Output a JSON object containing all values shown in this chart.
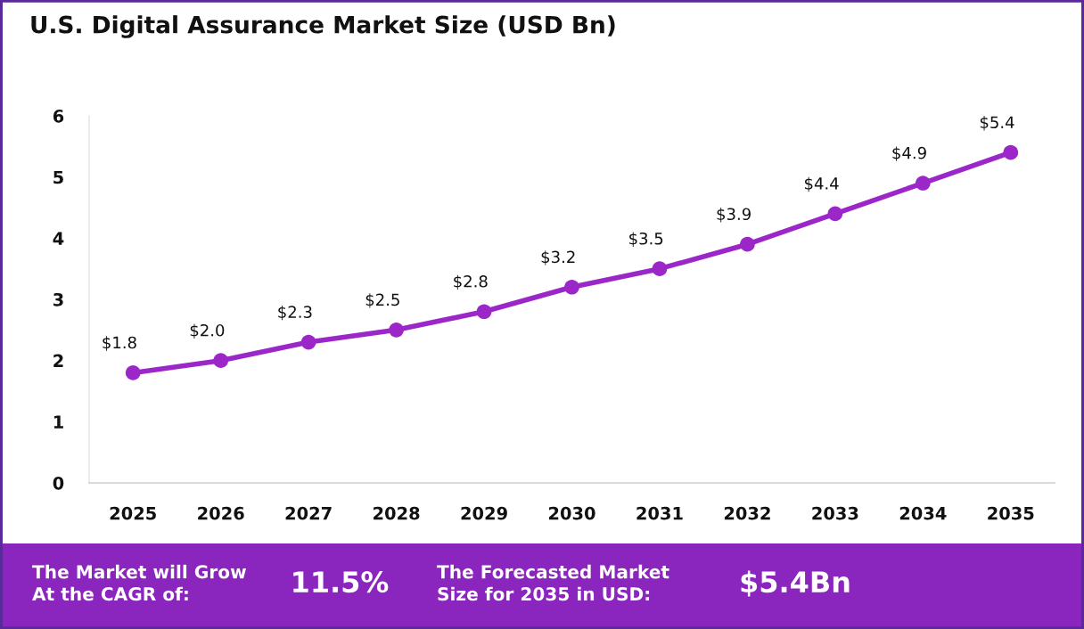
{
  "chart_data": {
    "type": "line",
    "title": "U.S. Digital Assurance Market Size (USD Bn)",
    "categories": [
      "2025",
      "2026",
      "2027",
      "2028",
      "2029",
      "2030",
      "2031",
      "2032",
      "2033",
      "2034",
      "2035"
    ],
    "series": [
      {
        "color": "#9c27c9",
        "values": [
          1.8,
          2.0,
          2.3,
          2.5,
          2.8,
          3.2,
          3.5,
          3.9,
          4.4,
          4.9,
          5.4
        ],
        "value_labels": [
          "$1.8",
          "$2.0",
          "$2.3",
          "$2.5",
          "$2.8",
          "$3.2",
          "$3.5",
          "$3.9",
          "$4.4",
          "$4.9",
          "$5.4"
        ]
      }
    ],
    "ylim": [
      0,
      6
    ],
    "yticks": [
      0,
      1,
      2,
      3,
      4,
      5,
      6
    ],
    "marker": "circle",
    "line_style": "solid",
    "annotations": [
      "The Market will Grow\nAt the CAGR of:",
      "11.5%",
      "The Forecasted Market\nSize for 2035 in USD:",
      "$5.4Bn"
    ]
  }
}
